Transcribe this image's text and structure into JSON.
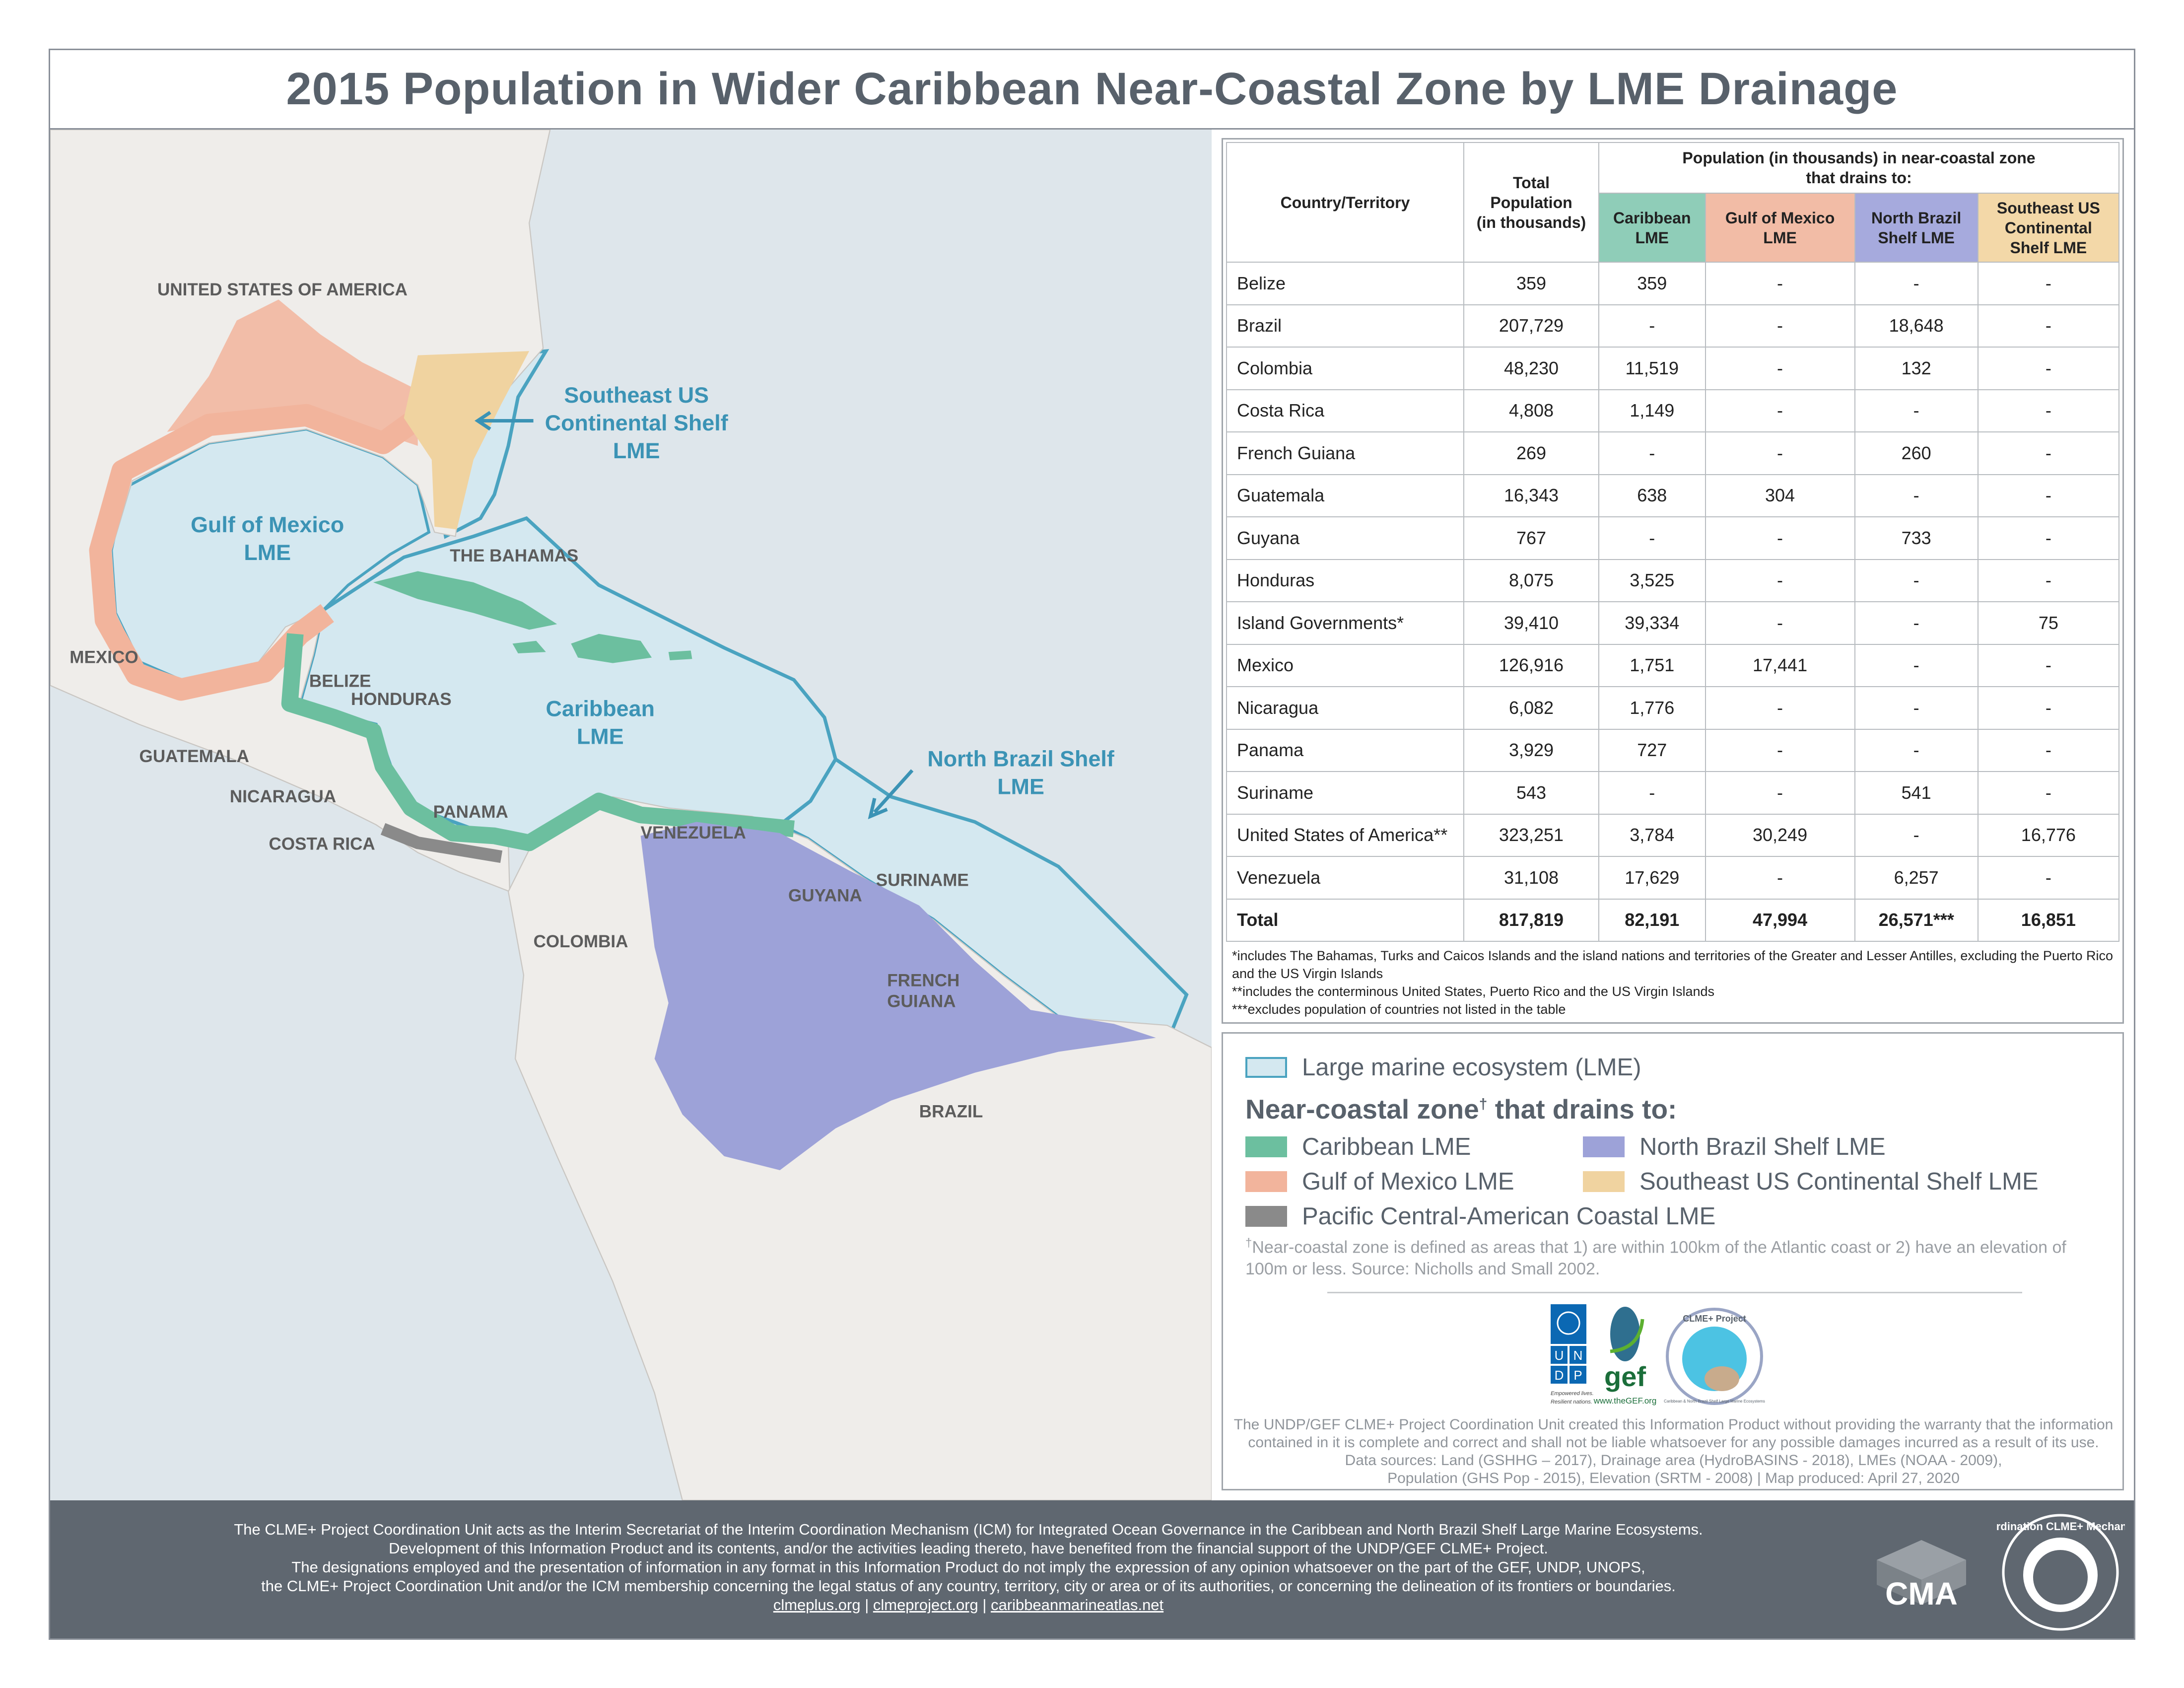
{
  "title": "2015 Population in Wider Caribbean Near-Coastal Zone by LME Drainage",
  "colors": {
    "caribbean": "#6cbf9f",
    "gulf_of_mexico": "#f2b49c",
    "north_brazil_shelf": "#9da2d8",
    "southeast_us": "#f0d3a0",
    "pacific": "#8a8a8a",
    "lme_fill": "#d4e8f0",
    "lme_border": "#4aa3c0",
    "ocean": "#dee6eb",
    "land": "#efedea"
  },
  "map": {
    "countries": [
      "UNITED STATES OF AMERICA",
      "MEXICO",
      "THE BAHAMAS",
      "BELIZE",
      "HONDURAS",
      "GUATEMALA",
      "NICARAGUA",
      "COSTA RICA",
      "PANAMA",
      "VENEZUELA",
      "COLOMBIA",
      "GUYANA",
      "SURINAME",
      "FRENCH",
      "GUIANA",
      "BRAZIL"
    ],
    "lmes": {
      "seus": [
        "Southeast US",
        "Continental Shelf",
        "LME"
      ],
      "gom": [
        "Gulf of Mexico",
        "LME"
      ],
      "car": [
        "Caribbean",
        "LME"
      ],
      "nbs": [
        "North Brazil Shelf",
        "LME"
      ]
    }
  },
  "table": {
    "col_country": "Country/Territory",
    "col_total": [
      "Total",
      "Population",
      "(in thousands)"
    ],
    "group_header": [
      "Population (in thousands) in near-coastal zone",
      "that drains to:"
    ],
    "lme_cols": [
      [
        "Caribbean",
        "LME"
      ],
      [
        "Gulf of Mexico",
        "LME"
      ],
      [
        "North Brazil",
        "Shelf LME"
      ],
      [
        "Southeast US",
        "Continental",
        "Shelf LME"
      ]
    ],
    "rows": [
      [
        "Belize",
        "359",
        "359",
        "-",
        "-",
        "-"
      ],
      [
        "Brazil",
        "207,729",
        "-",
        "-",
        "18,648",
        "-"
      ],
      [
        "Colombia",
        "48,230",
        "11,519",
        "-",
        "132",
        "-"
      ],
      [
        "Costa Rica",
        "4,808",
        "1,149",
        "-",
        "-",
        "-"
      ],
      [
        "French Guiana",
        "269",
        "-",
        "-",
        "260",
        "-"
      ],
      [
        "Guatemala",
        "16,343",
        "638",
        "304",
        "-",
        "-"
      ],
      [
        "Guyana",
        "767",
        "-",
        "-",
        "733",
        "-"
      ],
      [
        "Honduras",
        "8,075",
        "3,525",
        "-",
        "-",
        "-"
      ],
      [
        "Island Governments*",
        "39,410",
        "39,334",
        "-",
        "-",
        "75"
      ],
      [
        "Mexico",
        "126,916",
        "1,751",
        "17,441",
        "-",
        "-"
      ],
      [
        "Nicaragua",
        "6,082",
        "1,776",
        "-",
        "-",
        "-"
      ],
      [
        "Panama",
        "3,929",
        "727",
        "-",
        "-",
        "-"
      ],
      [
        "Suriname",
        "543",
        "-",
        "-",
        "541",
        "-"
      ],
      [
        "United States of America**",
        "323,251",
        "3,784",
        "30,249",
        "-",
        "16,776"
      ],
      [
        "Venezuela",
        "31,108",
        "17,629",
        "-",
        "6,257",
        "-"
      ]
    ],
    "total": [
      "Total",
      "817,819",
      "82,191",
      "47,994",
      "26,571***",
      "16,851"
    ],
    "footnotes": [
      "*includes The Bahamas, Turks and Caicos Islands and the island nations and territories of the Greater and Lesser Antilles, excluding the Puerto Rico and the US Virgin Islands",
      "**includes the conterminous United States, Puerto Rico and the US Virgin Islands",
      "***excludes population of countries not listed in the table"
    ]
  },
  "legend": {
    "lme": "Large marine ecosystem (LME)",
    "heading": "Near-coastal zone",
    "heading_mark": "†",
    "heading_rest": " that drains to:",
    "items": [
      "Caribbean LME",
      "North Brazil Shelf LME",
      "Gulf of Mexico LME",
      "Southeast US Continental Shelf LME",
      "Pacific Central-American Coastal LME"
    ],
    "definition_mark": "†",
    "definition": "Near-coastal zone is defined as areas that 1) are within 100km of the Atlantic coast or 2) have an elevation of 100m or less. Source: Nicholls and Small 2002.",
    "logos": {
      "undp": [
        "U",
        "N",
        "D",
        "P"
      ],
      "undp_tagline": [
        "Empowered lives.",
        "Resilient nations."
      ],
      "gef": "gef",
      "gef_url": "www.theGEF.org",
      "clme_ring": "CLME+ Project",
      "clme_ring_sub": "Caribbean & North Brazil Shelf Large Marine Ecosystems"
    },
    "disclaimer": [
      "The UNDP/GEF CLME+ Project Coordination Unit created this Information Product without providing the warranty that the information",
      "contained in it is complete and correct and shall not be liable whatsoever for any possible damages incurred as a result of its use.",
      "Data sources: Land (GSHHG – 2017), Drainage area (HydroBASINS - 2018),  LMEs (NOAA - 2009),",
      "Population (GHS Pop - 2015), Elevation (SRTM - 2008) | Map produced: April 27, 2020"
    ]
  },
  "footer": {
    "lines": [
      "The CLME+ Project Coordination Unit acts as the Interim Secretariat of the Interim Coordination Mechanism (ICM) for Integrated Ocean Governance in the Caribbean and North Brazil Shelf Large Marine Ecosystems.",
      "Development of this Information Product and its contents, and/or the activities leading thereto, have benefited from the financial support of the UNDP/GEF CLME+ Project.",
      "The designations employed and the presentation of information in any format in this Information Product do not imply the expression of any opinion whatsoever on the part of the GEF, UNDP, UNOPS,",
      "the CLME+ Project Coordination Unit and/or the ICM membership concerning the legal status of any country, territory, city or area or of its authorities, or concerning the delineation of its frontiers or boundaries."
    ],
    "links": [
      "clmeplus.org",
      "clmeproject.org",
      "caribbeanmarineatlas.net"
    ],
    "separator": " | ",
    "cma_logo": "CMA",
    "mechanism_logo": "Coordination CLME+ Mechanism"
  }
}
